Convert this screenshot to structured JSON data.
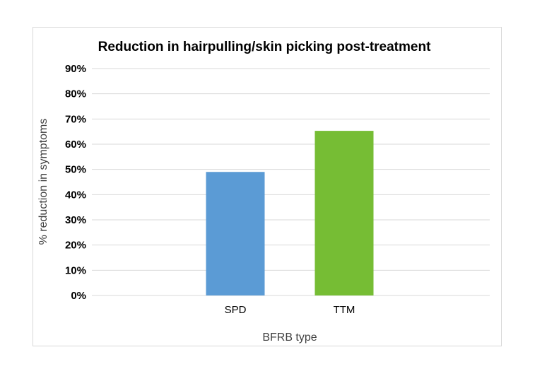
{
  "chart_data": {
    "type": "bar",
    "title": "Reduction in hairpulling/skin picking post-treatment",
    "xlabel": "BFRB type",
    "ylabel": "% reduction in symptoms",
    "categories": [
      "SPD",
      "TTM"
    ],
    "values": [
      49,
      65.3
    ],
    "colors": [
      "#5b9bd5",
      "#76bd34"
    ],
    "ylim": [
      0,
      90
    ],
    "yticks": [
      "0%",
      "10%",
      "20%",
      "30%",
      "40%",
      "50%",
      "60%",
      "70%",
      "80%",
      "90%"
    ],
    "grid": true,
    "legend": "none"
  }
}
